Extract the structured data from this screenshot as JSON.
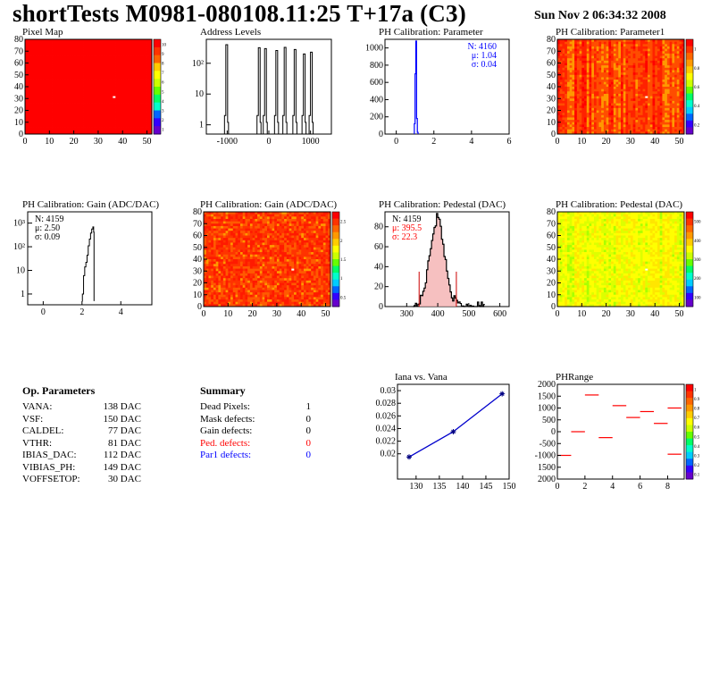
{
  "header": {
    "title": "shortTests M0981-080108.11:25 T+17a (C3)",
    "date": "Sun Nov  2 06:34:32 2008"
  },
  "panels": {
    "pixel_map": {
      "title": "Pixel Map"
    },
    "address_levels": {
      "title": "Address Levels"
    },
    "ph_param": {
      "title": "PH Calibration: Parameter",
      "stats": [
        "N: 4160",
        "μ: 1.04",
        "σ: 0.04"
      ]
    },
    "ph_param1": {
      "title": "PH Calibration: Parameter1"
    },
    "gain_hist": {
      "title": "PH Calibration: Gain (ADC/DAC)",
      "stats": [
        "N: 4159",
        "μ: 2.50",
        "σ: 0.09"
      ]
    },
    "gain_map": {
      "title": "PH Calibration: Gain (ADC/DAC)"
    },
    "pedestal_hist": {
      "title": "PH Calibration: Pedestal (DAC)",
      "stats": [
        "N: 4159",
        "μ: 395.5",
        "σ: 22.3"
      ]
    },
    "pedestal_map": {
      "title": "PH Calibration: Pedestal (DAC)"
    },
    "iana": {
      "title": "Iana vs. Vana"
    },
    "phrange": {
      "title": "PHRange"
    }
  },
  "op_params": {
    "title": "Op. Parameters",
    "rows": [
      {
        "name": "VANA:",
        "value": "138 DAC"
      },
      {
        "name": "VSF:",
        "value": "150 DAC"
      },
      {
        "name": "CALDEL:",
        "value": "77 DAC"
      },
      {
        "name": "VTHR:",
        "value": "81 DAC"
      },
      {
        "name": "IBIAS_DAC:",
        "value": "112 DAC"
      },
      {
        "name": "VIBIAS_PH:",
        "value": "149 DAC"
      },
      {
        "name": "VOFFSETOP:",
        "value": "30 DAC"
      }
    ]
  },
  "summary": {
    "title": "Summary",
    "rows": [
      {
        "name": "Dead Pixels:",
        "value": "1"
      },
      {
        "name": "Mask defects:",
        "value": "0"
      },
      {
        "name": "Gain defects:",
        "value": "0"
      },
      {
        "name": "Ped. defects:",
        "value": "0"
      },
      {
        "name": "Par1 defects:",
        "value": "0"
      }
    ]
  },
  "colors": {
    "red": "#ff0000",
    "blue": "#0000ff",
    "orange": "#ff8c1a",
    "yellow": "#e6f000"
  },
  "chart_data": [
    {
      "id": "pixel_map",
      "type": "heatmap",
      "xlim": [
        0,
        52
      ],
      "ylim": [
        0,
        80
      ],
      "xticks": [
        "0",
        "10",
        "20",
        "30",
        "40",
        "50"
      ],
      "yticks": [
        "0",
        "10",
        "20",
        "30",
        "40",
        "50",
        "60",
        "70",
        "80"
      ],
      "zticks": [
        "10",
        "9",
        "8",
        "7",
        "6",
        "5",
        "4",
        "3",
        "2",
        "1"
      ],
      "fill": "uniform red",
      "dead_pixel": [
        36,
        32
      ]
    },
    {
      "id": "address_levels",
      "type": "bar",
      "log_y": true,
      "xlim": [
        -1500,
        1500
      ],
      "xticks": [
        "-1000",
        "0",
        "1000"
      ],
      "yticks": [
        "1",
        "10",
        "10²"
      ],
      "peaks": [
        {
          "x": -1000,
          "y": 400
        },
        {
          "x": -220,
          "y": 320
        },
        {
          "x": -70,
          "y": 300
        },
        {
          "x": 200,
          "y": 260
        },
        {
          "x": 400,
          "y": 330
        },
        {
          "x": 640,
          "y": 280
        },
        {
          "x": 860,
          "y": 200
        },
        {
          "x": 1030,
          "y": 230
        }
      ]
    },
    {
      "id": "ph_param",
      "type": "bar",
      "xlim": [
        -0.6,
        6
      ],
      "ylim": [
        0,
        1100
      ],
      "xticks": [
        "0",
        "2",
        "4",
        "6"
      ],
      "yticks": [
        "0",
        "200",
        "400",
        "600",
        "800",
        "1000"
      ],
      "bins": [
        {
          "x": 0.98,
          "y": 120
        },
        {
          "x": 1.02,
          "y": 700
        },
        {
          "x": 1.06,
          "y": 1080
        },
        {
          "x": 1.1,
          "y": 180
        },
        {
          "x": 1.14,
          "y": 20
        }
      ]
    },
    {
      "id": "ph_param1",
      "type": "heatmap",
      "xlim": [
        0,
        52
      ],
      "ylim": [
        0,
        80
      ],
      "xticks": [
        "0",
        "10",
        "20",
        "30",
        "40",
        "50"
      ],
      "yticks": [
        "0",
        "10",
        "20",
        "30",
        "40",
        "50",
        "60",
        "70",
        "80"
      ],
      "zticks": [
        "1",
        "0.8",
        "0.6",
        "0.4",
        "0.2"
      ]
    },
    {
      "id": "gain_hist",
      "type": "line",
      "log_y": true,
      "xlim": [
        -0.8,
        5.6
      ],
      "xticks": [
        "0",
        "2",
        "4"
      ],
      "yticks": [
        "1",
        "10",
        "10²",
        "10³"
      ],
      "points": [
        [
          2.0,
          0.5
        ],
        [
          2.02,
          1
        ],
        [
          2.08,
          6
        ],
        [
          2.14,
          14
        ],
        [
          2.2,
          22
        ],
        [
          2.26,
          44
        ],
        [
          2.32,
          110
        ],
        [
          2.38,
          210
        ],
        [
          2.44,
          380
        ],
        [
          2.5,
          560
        ],
        [
          2.56,
          690
        ],
        [
          2.6,
          420
        ],
        [
          2.62,
          0.5
        ]
      ]
    },
    {
      "id": "gain_map",
      "type": "heatmap",
      "xlim": [
        0,
        52
      ],
      "ylim": [
        0,
        80
      ],
      "xticks": [
        "0",
        "10",
        "20",
        "30",
        "40",
        "50"
      ],
      "yticks": [
        "0",
        "10",
        "20",
        "30",
        "40",
        "50",
        "60",
        "70",
        "80"
      ],
      "zticks": [
        "2.5",
        "2",
        "1.5",
        "1",
        "0.5"
      ]
    },
    {
      "id": "pedestal_hist",
      "type": "bar",
      "xlim": [
        230,
        630
      ],
      "ylim": [
        0,
        95
      ],
      "xticks": [
        "300",
        "400",
        "500",
        "600"
      ],
      "yticks": [
        "0",
        "20",
        "40",
        "60",
        "80"
      ],
      "mean": 395.5,
      "sigma": 22.3,
      "peak": 85,
      "cuts": [
        340,
        460
      ]
    },
    {
      "id": "pedestal_map",
      "type": "heatmap",
      "xlim": [
        0,
        52
      ],
      "ylim": [
        0,
        80
      ],
      "xticks": [
        "0",
        "10",
        "20",
        "30",
        "40",
        "50"
      ],
      "yticks": [
        "0",
        "10",
        "20",
        "30",
        "40",
        "50",
        "60",
        "70",
        "80"
      ],
      "zticks": [
        "500",
        "400",
        "300",
        "200",
        "100"
      ]
    },
    {
      "id": "iana",
      "type": "line",
      "xlim": [
        126,
        150
      ],
      "ylim": [
        0.016,
        0.031
      ],
      "xticks": [
        "130",
        "135",
        "140",
        "145",
        "150"
      ],
      "yticks": [
        "0.02",
        "0.022",
        "0.024",
        "0.026",
        "0.028",
        "0.03"
      ],
      "points": [
        [
          128.5,
          0.0195
        ],
        [
          138,
          0.0235
        ],
        [
          148.5,
          0.0295
        ]
      ]
    },
    {
      "id": "phrange",
      "type": "scatter",
      "xlim": [
        0,
        9.2
      ],
      "ylim": [
        -2000,
        2000
      ],
      "xticks": [
        "0",
        "2",
        "4",
        "6",
        "8"
      ],
      "yticks": [
        "2000",
        "1500",
        "1000",
        "500",
        "0",
        "-500",
        "-1000",
        "1500",
        "2000"
      ],
      "zticks": [
        "1",
        "0.9",
        "0.8",
        "0.7",
        "0.6",
        "0.5",
        "0.4",
        "0.3",
        "0.2",
        "0.1"
      ],
      "segments": [
        [
          0.5,
          -1000
        ],
        [
          1.5,
          0
        ],
        [
          2.5,
          1550
        ],
        [
          3.5,
          -250
        ],
        [
          4.5,
          1100
        ],
        [
          5.5,
          600
        ],
        [
          6.5,
          850
        ],
        [
          7.5,
          350
        ],
        [
          8.5,
          1000
        ],
        [
          8.5,
          -950
        ]
      ]
    }
  ]
}
